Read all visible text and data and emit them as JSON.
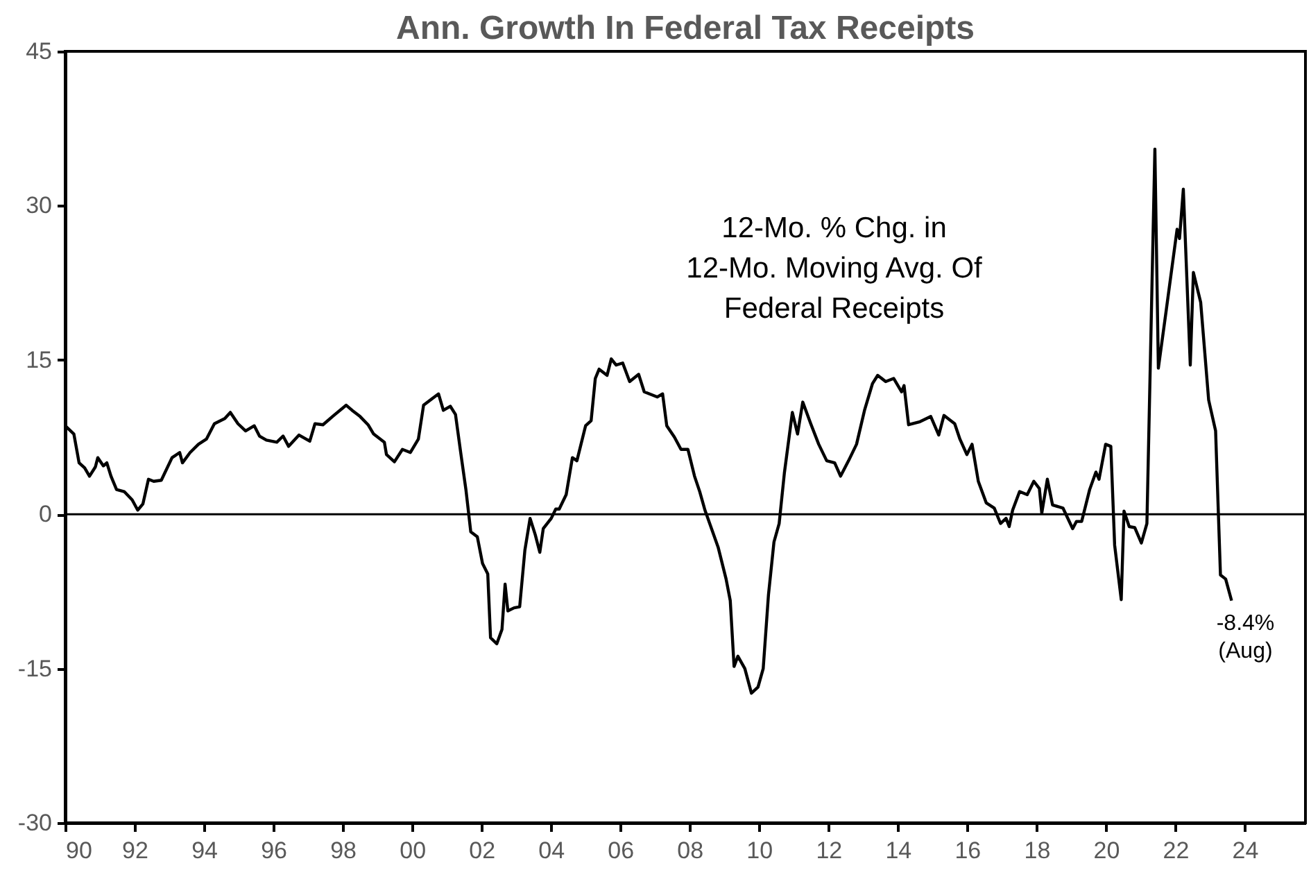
{
  "chart_data": {
    "type": "line",
    "title": "Ann. Growth In Federal Tax Receipts",
    "x": [
      1990.0,
      1990.25,
      1990.4,
      1990.56,
      1990.7,
      1990.87,
      1990.94,
      1991.1,
      1991.2,
      1991.32,
      1991.48,
      1991.7,
      1991.93,
      1992.09,
      1992.24,
      1992.4,
      1992.55,
      1992.77,
      1993.08,
      1993.3,
      1993.38,
      1993.6,
      1993.84,
      1994.07,
      1994.3,
      1994.6,
      1994.76,
      1994.98,
      1995.2,
      1995.45,
      1995.6,
      1995.8,
      1996.1,
      1996.28,
      1996.44,
      1996.74,
      1997.05,
      1997.2,
      1997.43,
      1997.74,
      1998.1,
      1998.27,
      1998.5,
      1998.73,
      1998.89,
      1999.2,
      1999.26,
      1999.49,
      1999.72,
      1999.95,
      2000.18,
      2000.33,
      2000.56,
      2000.76,
      2000.9,
      2001.1,
      2001.25,
      2001.4,
      2001.55,
      2001.69,
      2001.88,
      2002.03,
      2002.18,
      2002.26,
      2002.44,
      2002.59,
      2002.68,
      2002.76,
      2002.94,
      2003.1,
      2003.25,
      2003.4,
      2003.55,
      2003.68,
      2003.78,
      2004.01,
      2004.14,
      2004.24,
      2004.44,
      2004.62,
      2004.75,
      2005.0,
      2005.16,
      2005.28,
      2005.39,
      2005.62,
      2005.74,
      2005.88,
      2006.07,
      2006.27,
      2006.53,
      2006.69,
      2007.07,
      2007.22,
      2007.34,
      2007.56,
      2007.75,
      2007.95,
      2008.14,
      2008.29,
      2008.44,
      2008.82,
      2009.05,
      2009.17,
      2009.28,
      2009.39,
      2009.59,
      2009.78,
      2009.97,
      2010.12,
      2010.27,
      2010.43,
      2010.58,
      2010.73,
      2010.96,
      2011.11,
      2011.26,
      2011.49,
      2011.72,
      2011.95,
      2012.18,
      2012.35,
      2012.58,
      2012.81,
      2013.04,
      2013.27,
      2013.42,
      2013.65,
      2013.88,
      2014.11,
      2014.18,
      2014.31,
      2014.64,
      2014.95,
      2015.18,
      2015.33,
      2015.64,
      2015.79,
      2015.99,
      2016.14,
      2016.32,
      2016.55,
      2016.78,
      2016.96,
      2017.12,
      2017.21,
      2017.31,
      2017.51,
      2017.73,
      2017.92,
      2018.08,
      2018.15,
      2018.31,
      2018.46,
      2018.76,
      2019.04,
      2019.15,
      2019.3,
      2019.53,
      2019.71,
      2019.8,
      2019.99,
      2020.14,
      2020.25,
      2020.44,
      2020.52,
      2020.67,
      2020.83,
      2021.02,
      2021.18,
      2021.41,
      2021.51,
      2021.74,
      2022.05,
      2022.12,
      2022.23,
      2022.43,
      2022.52,
      2022.73,
      2022.96,
      2023.16,
      2023.3,
      2023.45,
      2023.62
    ],
    "series": [
      {
        "color": "#000000",
        "values": [
          8.6,
          7.8,
          5.0,
          4.5,
          3.7,
          4.6,
          5.5,
          4.7,
          5.0,
          3.7,
          2.4,
          2.2,
          1.4,
          0.4,
          1.0,
          3.4,
          3.2,
          3.3,
          5.5,
          6.0,
          5.0,
          6.0,
          6.8,
          7.3,
          8.8,
          9.3,
          9.9,
          8.8,
          8.1,
          8.6,
          7.6,
          7.2,
          7.0,
          7.6,
          6.6,
          7.7,
          7.1,
          8.8,
          8.7,
          9.6,
          10.6,
          10.1,
          9.5,
          8.7,
          7.8,
          7.0,
          5.8,
          5.1,
          6.3,
          6.0,
          7.3,
          10.6,
          11.2,
          11.7,
          10.1,
          10.5,
          9.7,
          6.0,
          2.4,
          -1.7,
          -2.2,
          -4.8,
          -5.8,
          -12.0,
          -12.6,
          -11.2,
          -6.8,
          -9.4,
          -9.1,
          -9.0,
          -3.5,
          -0.4,
          -2.0,
          -3.7,
          -1.4,
          -0.4,
          0.5,
          0.5,
          1.9,
          5.5,
          5.2,
          8.6,
          9.1,
          13.2,
          14.1,
          13.5,
          15.1,
          14.5,
          14.7,
          12.9,
          13.6,
          11.9,
          11.4,
          11.7,
          8.6,
          7.5,
          6.3,
          6.3,
          3.7,
          2.2,
          0.4,
          -3.2,
          -6.3,
          -8.4,
          -14.8,
          -13.8,
          -15.0,
          -17.4,
          -16.8,
          -15.0,
          -7.9,
          -2.7,
          -0.9,
          4.0,
          9.9,
          7.8,
          10.9,
          8.8,
          6.8,
          5.2,
          5.0,
          3.7,
          5.2,
          6.8,
          10.1,
          12.7,
          13.5,
          12.9,
          13.2,
          11.9,
          12.5,
          8.7,
          9.0,
          9.5,
          7.7,
          9.6,
          8.8,
          7.3,
          5.8,
          6.8,
          3.2,
          1.1,
          0.6,
          -0.9,
          -0.4,
          -1.2,
          0.4,
          2.2,
          1.9,
          3.2,
          2.5,
          0.1,
          3.4,
          0.9,
          0.6,
          -1.4,
          -0.7,
          -0.7,
          2.4,
          4.1,
          3.4,
          6.8,
          6.6,
          -3.0,
          -8.3,
          0.3,
          -1.2,
          -1.3,
          -2.8,
          -0.9,
          35.5,
          14.2,
          19.9,
          27.7,
          26.8,
          31.6,
          14.5,
          23.5,
          20.6,
          11.1,
          8.1,
          -5.9,
          -6.3,
          -8.4
        ]
      }
    ],
    "xlim": [
      1990,
      2025.75
    ],
    "xticks": [
      {
        "value": 1990,
        "label": "90"
      },
      {
        "value": 1992,
        "label": "92"
      },
      {
        "value": 1994,
        "label": "94"
      },
      {
        "value": 1996,
        "label": "96"
      },
      {
        "value": 1998,
        "label": "98"
      },
      {
        "value": 2000,
        "label": "00"
      },
      {
        "value": 2002,
        "label": "02"
      },
      {
        "value": 2004,
        "label": "04"
      },
      {
        "value": 2006,
        "label": "06"
      },
      {
        "value": 2008,
        "label": "08"
      },
      {
        "value": 2010,
        "label": "10"
      },
      {
        "value": 2012,
        "label": "12"
      },
      {
        "value": 2014,
        "label": "14"
      },
      {
        "value": 2016,
        "label": "16"
      },
      {
        "value": 2018,
        "label": "18"
      },
      {
        "value": 2020,
        "label": "20"
      },
      {
        "value": 2022,
        "label": "22"
      },
      {
        "value": 2024,
        "label": "24"
      }
    ],
    "ylim": [
      -30,
      45
    ],
    "yticks": [
      -30,
      -15,
      0,
      15,
      30,
      45
    ],
    "ref_lines": [
      {
        "axis": "y",
        "value": 0,
        "color": "#000000"
      }
    ],
    "annotations": [
      "12-Mo. % Chg. in\n12-Mo. Moving Avg. Of\nFederal Receipts",
      {
        "text": "-8.4%\n(Aug)",
        "x": 2023.62,
        "y": -8.4
      }
    ],
    "grid": false
  }
}
